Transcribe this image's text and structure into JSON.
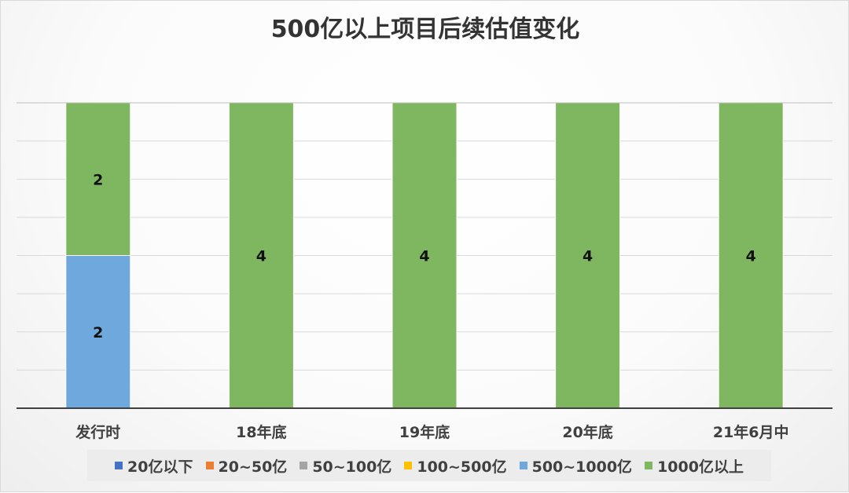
{
  "chart_data": {
    "type": "bar",
    "stacked": true,
    "title": "500亿以上项目后续估值变化",
    "categories": [
      "发行时",
      "18年底",
      "19年底",
      "20年底",
      "21年6月中"
    ],
    "series": [
      {
        "name": "20亿以下",
        "color": "#4472c4",
        "values": [
          0,
          0,
          0,
          0,
          0
        ]
      },
      {
        "name": "20~50亿",
        "color": "#ed7d31",
        "values": [
          0,
          0,
          0,
          0,
          0
        ]
      },
      {
        "name": "50~100亿",
        "color": "#a5a5a5",
        "values": [
          0,
          0,
          0,
          0,
          0
        ]
      },
      {
        "name": "100~500亿",
        "color": "#ffc000",
        "values": [
          0,
          0,
          0,
          0,
          0
        ]
      },
      {
        "name": "500~1000亿",
        "color": "#6fa8dc",
        "values": [
          2,
          0,
          0,
          0,
          0
        ]
      },
      {
        "name": "1000亿以上",
        "color": "#7fb761",
        "values": [
          2,
          4,
          4,
          4,
          4
        ]
      }
    ],
    "ylim": [
      0,
      4
    ],
    "grid": true,
    "legend_position": "bottom",
    "xlabel": "",
    "ylabel": ""
  }
}
